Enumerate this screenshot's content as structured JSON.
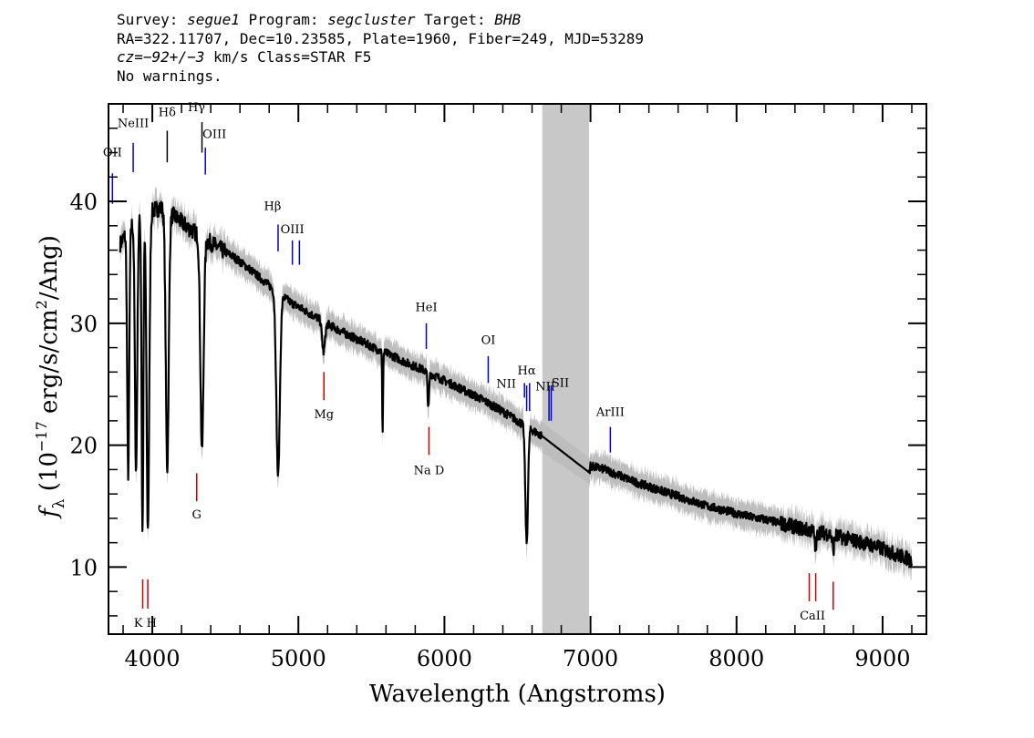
{
  "header": {
    "line1": {
      "survey_label": "Survey: ",
      "survey": "segue1",
      "program_label": " Program: ",
      "program": "segcluster",
      "target_label": " Target: ",
      "target": "BHB"
    },
    "line2": "RA=322.11707, Dec=10.23585, Plate=1960, Fiber=249, MJD=53289",
    "line3": {
      "cz_label": "cz",
      "cz_eq": "=",
      "cz_value": "−92+/−3",
      "cz_rest": " km/s Class=STAR F5"
    },
    "line4": "No warnings."
  },
  "chart_data": {
    "type": "line",
    "xlabel": "Wavelength (Angstroms)",
    "ylabel": "f_λ (10^-17 erg/s/cm^2/Ang)",
    "ylabel_parts": {
      "f": "f",
      "lambda": "λ",
      "prefix": " (10",
      "exp1": "−17",
      "mid": " erg/s/cm",
      "exp2": "2",
      "suffix": "/Ang)"
    },
    "xlim": [
      3700,
      9300
    ],
    "ylim": [
      4.5,
      48.0
    ],
    "x_ticks": [
      4000,
      5000,
      6000,
      7000,
      8000,
      9000
    ],
    "x_tick_labels": [
      "4000",
      "5000",
      "6000",
      "7000",
      "8000",
      "9000"
    ],
    "y_ticks": [
      10,
      20,
      30,
      40
    ],
    "y_tick_labels": [
      "10",
      "20",
      "30",
      "40"
    ],
    "masked_region": [
      6670,
      6990
    ],
    "masked_color": "#c8c8c8",
    "continuum": [
      [
        3780,
        36.5
      ],
      [
        3850,
        38.0
      ],
      [
        3950,
        39.0
      ],
      [
        4050,
        39.5
      ],
      [
        4150,
        38.8
      ],
      [
        4250,
        37.8
      ],
      [
        4350,
        37.0
      ],
      [
        4450,
        36.2
      ],
      [
        4550,
        35.5
      ],
      [
        4650,
        34.6
      ],
      [
        4750,
        33.6
      ],
      [
        4850,
        32.6
      ],
      [
        4950,
        31.7
      ],
      [
        5050,
        31.0
      ],
      [
        5150,
        30.3
      ],
      [
        5250,
        29.6
      ],
      [
        5350,
        29.0
      ],
      [
        5450,
        28.4
      ],
      [
        5550,
        27.8
      ],
      [
        5650,
        27.3
      ],
      [
        5750,
        26.7
      ],
      [
        5850,
        26.2
      ],
      [
        5950,
        25.6
      ],
      [
        6050,
        25.0
      ],
      [
        6150,
        24.4
      ],
      [
        6250,
        23.8
      ],
      [
        6350,
        23.1
      ],
      [
        6450,
        22.4
      ],
      [
        6550,
        21.6
      ],
      [
        6660,
        20.8
      ],
      [
        6990,
        17.8
      ],
      [
        7000,
        18.3
      ],
      [
        7100,
        18.0
      ],
      [
        7200,
        17.5
      ],
      [
        7300,
        17.0
      ],
      [
        7400,
        16.6
      ],
      [
        7500,
        16.2
      ],
      [
        7600,
        15.8
      ],
      [
        7700,
        15.4
      ],
      [
        7800,
        15.0
      ],
      [
        7900,
        14.7
      ],
      [
        8000,
        14.4
      ],
      [
        8100,
        14.1
      ],
      [
        8200,
        13.9
      ],
      [
        8300,
        13.6
      ],
      [
        8400,
        13.3
      ],
      [
        8500,
        13.0
      ],
      [
        8600,
        12.8
      ],
      [
        8700,
        12.5
      ],
      [
        8800,
        12.2
      ],
      [
        8900,
        11.9
      ],
      [
        9000,
        11.5
      ],
      [
        9100,
        11.0
      ],
      [
        9200,
        10.6
      ]
    ],
    "absorption": [
      {
        "center": 3835,
        "depth": 20.0,
        "width": 7
      },
      {
        "center": 3889,
        "depth": 20.5,
        "width": 8
      },
      {
        "center": 3933,
        "depth": 26.0,
        "width": 6
      },
      {
        "center": 3970,
        "depth": 26.0,
        "width": 9
      },
      {
        "center": 4102,
        "depth": 21.0,
        "width": 10
      },
      {
        "center": 4340,
        "depth": 17.5,
        "width": 11
      },
      {
        "center": 4861,
        "depth": 15.0,
        "width": 12
      },
      {
        "center": 5172,
        "depth": 2.5,
        "width": 10
      },
      {
        "center": 5577,
        "depth": 6.5,
        "width": 3
      },
      {
        "center": 5890,
        "depth": 3.0,
        "width": 5
      },
      {
        "center": 6563,
        "depth": 9.5,
        "width": 9
      },
      {
        "center": 8542,
        "depth": 1.5,
        "width": 6
      },
      {
        "center": 8662,
        "depth": 1.2,
        "width": 6
      }
    ],
    "noise_band": 0.8,
    "line_markers": [
      {
        "label": "OII",
        "x": 3727,
        "y_top": 42.3,
        "y_bottom": 39.8,
        "color": "#0000cc",
        "label_y": 43.7,
        "label_dx": 0
      },
      {
        "label": "NeIII",
        "x": 3869,
        "y_top": 44.8,
        "y_bottom": 42.4,
        "color": "#0000cc",
        "label_y": 46.1,
        "label_dx": 0
      },
      {
        "label": "Hδ",
        "x": 4102,
        "y_top": 45.8,
        "y_bottom": 43.2,
        "color": "#000000",
        "label_y": 47.0,
        "label_dx": 0
      },
      {
        "label": "Hγ",
        "x": 4340,
        "y_top": 46.5,
        "y_bottom": 44.0,
        "color": "#000000",
        "label_y": 47.4,
        "label_dx": -6
      },
      {
        "label": "OIII",
        "x": 4363,
        "y_top": 44.4,
        "y_bottom": 42.2,
        "color": "#0000cc",
        "label_y": 45.2,
        "label_dx": 10
      },
      {
        "label": "Hβ",
        "x": 4861,
        "y_top": 38.1,
        "y_bottom": 35.9,
        "color": "#0000cc",
        "label_y": 39.3,
        "label_dx": -6
      },
      {
        "label": "OIII",
        "x": 4959,
        "y_top": 36.8,
        "y_bottom": 34.8,
        "color": "#0000cc",
        "label_y": 37.4,
        "label_dx": 0
      },
      {
        "label": "",
        "x": 5007,
        "y_top": 36.8,
        "y_bottom": 34.8,
        "color": "#0000cc",
        "label_y": 0,
        "label_dx": 0
      },
      {
        "label": "HeI",
        "x": 5876,
        "y_top": 30.0,
        "y_bottom": 27.9,
        "color": "#0000cc",
        "label_y": 31.0,
        "label_dx": 0
      },
      {
        "label": "OI",
        "x": 6300,
        "y_top": 27.3,
        "y_bottom": 25.1,
        "color": "#0000cc",
        "label_y": 28.3,
        "label_dx": 0
      },
      {
        "label": "NII",
        "x": 6548,
        "y_top": 25.1,
        "y_bottom": 23.9,
        "color": "#0000cc",
        "label_y": 24.7,
        "label_dx": -20
      },
      {
        "label": "Hα",
        "x": 6563,
        "y_top": 24.9,
        "y_bottom": 22.8,
        "color": "#0000cc",
        "label_y": 25.8,
        "label_dx": 0
      },
      {
        "label": "",
        "x": 6583,
        "y_top": 25.1,
        "y_bottom": 22.8,
        "color": "#0000cc",
        "label_y": 0,
        "label_dx": 0
      },
      {
        "label": "NII",
        "x": 6716,
        "y_top": 24.9,
        "y_bottom": 22.0,
        "color": "#0000cc",
        "label_y": 24.5,
        "label_dx": -4
      },
      {
        "label": "SII",
        "x": 6731,
        "y_top": 24.9,
        "y_bottom": 22.0,
        "color": "#0000cc",
        "label_y": 24.8,
        "label_dx": 10
      },
      {
        "label": "ArIII",
        "x": 7136,
        "y_top": 21.5,
        "y_bottom": 19.4,
        "color": "#0000cc",
        "label_y": 22.4,
        "label_dx": 0
      },
      {
        "label": "G",
        "x": 4304,
        "y_top": 17.7,
        "y_bottom": 15.4,
        "color": "#cc0000",
        "label_y": 14.0,
        "label_dx": 0
      },
      {
        "label": "Mg",
        "x": 5175,
        "y_top": 26.0,
        "y_bottom": 23.7,
        "color": "#cc0000",
        "label_y": 22.2,
        "label_dx": 0
      },
      {
        "label": "Na D",
        "x": 5894,
        "y_top": 21.5,
        "y_bottom": 19.2,
        "color": "#cc0000",
        "label_y": 17.6,
        "label_dx": 0
      },
      {
        "label": "",
        "x": 3934,
        "y_top": 9.0,
        "y_bottom": 6.6,
        "color": "#cc0000",
        "label_y": 0,
        "label_dx": 0
      },
      {
        "label": "",
        "x": 3969,
        "y_top": 9.0,
        "y_bottom": 6.6,
        "color": "#cc0000",
        "label_y": 0,
        "label_dx": 0
      },
      {
        "label": "K H",
        "x": 3952,
        "y_top": 0,
        "y_bottom": 0,
        "color": "#cc0000",
        "label_y": 5.1,
        "label_dx": 0
      },
      {
        "label": "",
        "x": 8498,
        "y_top": 9.5,
        "y_bottom": 7.2,
        "color": "#cc0000",
        "label_y": 0,
        "label_dx": 0
      },
      {
        "label": "",
        "x": 8542,
        "y_top": 9.5,
        "y_bottom": 7.2,
        "color": "#cc0000",
        "label_y": 0,
        "label_dx": 0
      },
      {
        "label": "",
        "x": 8662,
        "y_top": 8.8,
        "y_bottom": 6.5,
        "color": "#cc0000",
        "label_y": 0,
        "label_dx": 0
      },
      {
        "label": "CaII",
        "x": 8520,
        "y_top": 0,
        "y_bottom": 0,
        "color": "#cc0000",
        "label_y": 5.7,
        "label_dx": 0
      }
    ]
  }
}
